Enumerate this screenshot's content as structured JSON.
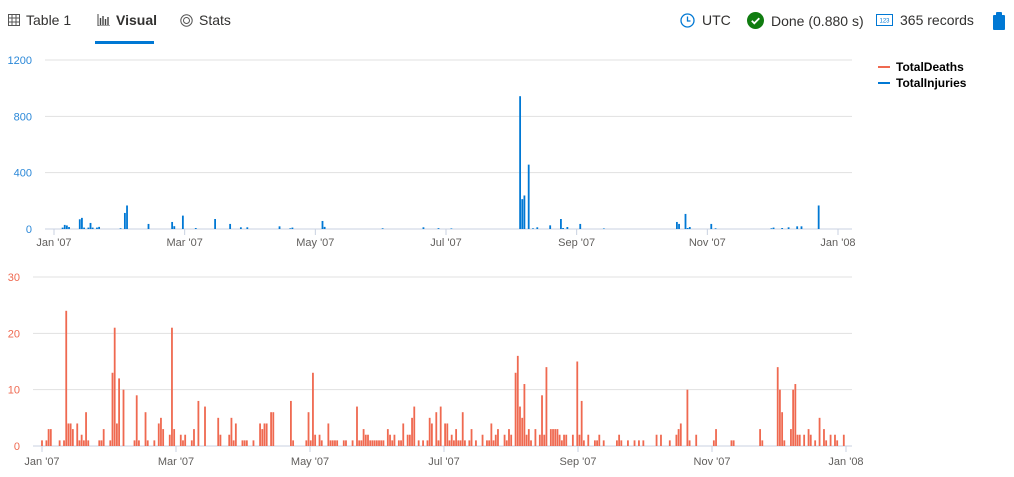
{
  "tabs": [
    {
      "label": "Table 1",
      "icon": "table-icon"
    },
    {
      "label": "Visual",
      "icon": "bar-chart-icon",
      "active": true
    },
    {
      "label": "Stats",
      "icon": "stats-icon"
    }
  ],
  "status": {
    "timezone": "UTC",
    "done": "Done (0.880 s)",
    "records": "365 records"
  },
  "colors": {
    "deaths": "#ef6950",
    "injuries": "#0078d4",
    "accent": "#0078d4",
    "success": "#107c10"
  },
  "chart_data": [
    {
      "type": "bar",
      "series": [
        {
          "name": "TotalInjuries",
          "color": "#0078d4"
        }
      ],
      "ylim": [
        0,
        1200
      ],
      "yticks": [
        "0",
        "400",
        "800",
        "1200"
      ],
      "xticks": [
        "Jan '07",
        "Mar '07",
        "May '07",
        "Jul '07",
        "Sep '07",
        "Nov '07",
        "Jan '08"
      ],
      "xrange": [
        "2007-01-01",
        "2008-01-01"
      ],
      "grid": true,
      "points": [
        [
          "2007-01-05",
          10
        ],
        [
          "2007-01-06",
          29
        ],
        [
          "2007-01-07",
          25
        ],
        [
          "2007-01-08",
          14
        ],
        [
          "2007-01-13",
          69
        ],
        [
          "2007-01-14",
          79
        ],
        [
          "2007-01-15",
          10
        ],
        [
          "2007-01-17",
          10
        ],
        [
          "2007-01-18",
          43
        ],
        [
          "2007-01-19",
          10
        ],
        [
          "2007-01-21",
          10
        ],
        [
          "2007-01-22",
          15
        ],
        [
          "2007-02-01",
          5
        ],
        [
          "2007-02-03",
          114
        ],
        [
          "2007-02-04",
          167
        ],
        [
          "2007-02-14",
          36
        ],
        [
          "2007-02-25",
          50
        ],
        [
          "2007-02-26",
          20
        ],
        [
          "2007-03-02",
          95
        ],
        [
          "2007-03-08",
          7
        ],
        [
          "2007-03-17",
          71
        ],
        [
          "2007-03-24",
          36
        ],
        [
          "2007-03-29",
          12
        ],
        [
          "2007-04-01",
          12
        ],
        [
          "2007-04-16",
          19
        ],
        [
          "2007-04-21",
          5
        ],
        [
          "2007-04-22",
          10
        ],
        [
          "2007-05-06",
          57
        ],
        [
          "2007-05-07",
          15
        ],
        [
          "2007-06-03",
          5
        ],
        [
          "2007-06-22",
          12
        ],
        [
          "2007-06-29",
          6
        ],
        [
          "2007-07-05",
          4
        ],
        [
          "2007-08-06",
          943
        ],
        [
          "2007-08-07",
          212
        ],
        [
          "2007-08-08",
          238
        ],
        [
          "2007-08-10",
          457
        ],
        [
          "2007-08-12",
          5
        ],
        [
          "2007-08-14",
          12
        ],
        [
          "2007-08-20",
          26
        ],
        [
          "2007-08-25",
          71
        ],
        [
          "2007-08-26",
          7
        ],
        [
          "2007-08-28",
          14
        ],
        [
          "2007-09-03",
          36
        ],
        [
          "2007-09-14",
          4
        ],
        [
          "2007-10-18",
          50
        ],
        [
          "2007-10-19",
          36
        ],
        [
          "2007-10-22",
          107
        ],
        [
          "2007-10-23",
          7
        ],
        [
          "2007-10-24",
          14
        ],
        [
          "2007-11-03",
          36
        ],
        [
          "2007-11-05",
          5
        ],
        [
          "2007-12-01",
          5
        ],
        [
          "2007-12-02",
          10
        ],
        [
          "2007-12-06",
          7
        ],
        [
          "2007-12-09",
          12
        ],
        [
          "2007-12-13",
          19
        ],
        [
          "2007-12-15",
          19
        ],
        [
          "2007-12-23",
          167
        ]
      ]
    },
    {
      "type": "bar",
      "series": [
        {
          "name": "TotalDeaths",
          "color": "#ef6950"
        }
      ],
      "ylim": [
        0,
        30
      ],
      "yticks": [
        "0",
        "10",
        "20",
        "30"
      ],
      "xticks": [
        "Jan '07",
        "Mar '07",
        "May '07",
        "Jul '07",
        "Sep '07",
        "Nov '07",
        "Jan '08"
      ],
      "xrange": [
        "2007-01-01",
        "2008-01-01"
      ],
      "grid": true,
      "points": [
        [
          "2007-01-01",
          1
        ],
        [
          "2007-01-03",
          1
        ],
        [
          "2007-01-04",
          3
        ],
        [
          "2007-01-05",
          3
        ],
        [
          "2007-01-09",
          1
        ],
        [
          "2007-01-11",
          1
        ],
        [
          "2007-01-12",
          24
        ],
        [
          "2007-01-13",
          4
        ],
        [
          "2007-01-14",
          4
        ],
        [
          "2007-01-15",
          3
        ],
        [
          "2007-01-17",
          4
        ],
        [
          "2007-01-18",
          1
        ],
        [
          "2007-01-19",
          2
        ],
        [
          "2007-01-20",
          1
        ],
        [
          "2007-01-21",
          6
        ],
        [
          "2007-01-22",
          1
        ],
        [
          "2007-01-27",
          1
        ],
        [
          "2007-01-28",
          1
        ],
        [
          "2007-01-29",
          3
        ],
        [
          "2007-02-01",
          1
        ],
        [
          "2007-02-02",
          13
        ],
        [
          "2007-02-03",
          21
        ],
        [
          "2007-02-04",
          4
        ],
        [
          "2007-02-05",
          12
        ],
        [
          "2007-02-07",
          10
        ],
        [
          "2007-02-12",
          1
        ],
        [
          "2007-02-13",
          9
        ],
        [
          "2007-02-14",
          1
        ],
        [
          "2007-02-17",
          6
        ],
        [
          "2007-02-18",
          1
        ],
        [
          "2007-02-21",
          1
        ],
        [
          "2007-02-23",
          4
        ],
        [
          "2007-02-24",
          5
        ],
        [
          "2007-02-25",
          3
        ],
        [
          "2007-02-28",
          2
        ],
        [
          "2007-03-01",
          21
        ],
        [
          "2007-03-02",
          3
        ],
        [
          "2007-03-05",
          2
        ],
        [
          "2007-03-06",
          1
        ],
        [
          "2007-03-07",
          2
        ],
        [
          "2007-03-10",
          1
        ],
        [
          "2007-03-11",
          3
        ],
        [
          "2007-03-13",
          8
        ],
        [
          "2007-03-16",
          7
        ],
        [
          "2007-03-22",
          5
        ],
        [
          "2007-03-23",
          2
        ],
        [
          "2007-03-27",
          2
        ],
        [
          "2007-03-28",
          5
        ],
        [
          "2007-03-29",
          1
        ],
        [
          "2007-03-30",
          4
        ],
        [
          "2007-04-02",
          1
        ],
        [
          "2007-04-03",
          1
        ],
        [
          "2007-04-04",
          1
        ],
        [
          "2007-04-07",
          1
        ],
        [
          "2007-04-10",
          4
        ],
        [
          "2007-04-11",
          3
        ],
        [
          "2007-04-12",
          4
        ],
        [
          "2007-04-13",
          4
        ],
        [
          "2007-04-15",
          6
        ],
        [
          "2007-04-16",
          6
        ],
        [
          "2007-04-24",
          8
        ],
        [
          "2007-04-25",
          1
        ],
        [
          "2007-05-01",
          1
        ],
        [
          "2007-05-02",
          6
        ],
        [
          "2007-05-03",
          1
        ],
        [
          "2007-05-04",
          13
        ],
        [
          "2007-05-05",
          2
        ],
        [
          "2007-05-07",
          2
        ],
        [
          "2007-05-08",
          1
        ],
        [
          "2007-05-11",
          4
        ],
        [
          "2007-05-12",
          1
        ],
        [
          "2007-05-13",
          1
        ],
        [
          "2007-05-14",
          1
        ],
        [
          "2007-05-15",
          1
        ],
        [
          "2007-05-18",
          1
        ],
        [
          "2007-05-19",
          1
        ],
        [
          "2007-05-22",
          1
        ],
        [
          "2007-05-24",
          7
        ],
        [
          "2007-05-25",
          1
        ],
        [
          "2007-05-26",
          1
        ],
        [
          "2007-05-27",
          3
        ],
        [
          "2007-05-28",
          2
        ],
        [
          "2007-05-29",
          2
        ],
        [
          "2007-05-30",
          1
        ],
        [
          "2007-05-31",
          1
        ],
        [
          "2007-06-01",
          1
        ],
        [
          "2007-06-02",
          1
        ],
        [
          "2007-06-03",
          1
        ],
        [
          "2007-06-04",
          1
        ],
        [
          "2007-06-05",
          1
        ],
        [
          "2007-06-07",
          3
        ],
        [
          "2007-06-08",
          2
        ],
        [
          "2007-06-09",
          1
        ],
        [
          "2007-06-10",
          2
        ],
        [
          "2007-06-12",
          1
        ],
        [
          "2007-06-13",
          1
        ],
        [
          "2007-06-14",
          4
        ],
        [
          "2007-06-16",
          2
        ],
        [
          "2007-06-17",
          2
        ],
        [
          "2007-06-18",
          5
        ],
        [
          "2007-06-19",
          7
        ],
        [
          "2007-06-21",
          1
        ],
        [
          "2007-06-23",
          1
        ],
        [
          "2007-06-25",
          1
        ],
        [
          "2007-06-26",
          5
        ],
        [
          "2007-06-27",
          4
        ],
        [
          "2007-06-29",
          6
        ],
        [
          "2007-06-30",
          1
        ],
        [
          "2007-07-01",
          7
        ],
        [
          "2007-07-03",
          4
        ],
        [
          "2007-07-04",
          4
        ],
        [
          "2007-07-05",
          1
        ],
        [
          "2007-07-06",
          2
        ],
        [
          "2007-07-07",
          1
        ],
        [
          "2007-07-08",
          3
        ],
        [
          "2007-07-09",
          1
        ],
        [
          "2007-07-10",
          1
        ],
        [
          "2007-07-11",
          6
        ],
        [
          "2007-07-12",
          1
        ],
        [
          "2007-07-14",
          1
        ],
        [
          "2007-07-15",
          3
        ],
        [
          "2007-07-17",
          1
        ],
        [
          "2007-07-20",
          2
        ],
        [
          "2007-07-22",
          1
        ],
        [
          "2007-07-23",
          1
        ],
        [
          "2007-07-24",
          4
        ],
        [
          "2007-07-25",
          1
        ],
        [
          "2007-07-26",
          2
        ],
        [
          "2007-07-27",
          3
        ],
        [
          "2007-07-30",
          2
        ],
        [
          "2007-07-31",
          1
        ],
        [
          "2007-08-01",
          3
        ],
        [
          "2007-08-02",
          2
        ],
        [
          "2007-08-04",
          13
        ],
        [
          "2007-08-05",
          16
        ],
        [
          "2007-08-06",
          7
        ],
        [
          "2007-08-07",
          5
        ],
        [
          "2007-08-08",
          11
        ],
        [
          "2007-08-09",
          2
        ],
        [
          "2007-08-10",
          3
        ],
        [
          "2007-08-11",
          1
        ],
        [
          "2007-08-13",
          3
        ],
        [
          "2007-08-15",
          2
        ],
        [
          "2007-08-16",
          9
        ],
        [
          "2007-08-17",
          2
        ],
        [
          "2007-08-18",
          14
        ],
        [
          "2007-08-20",
          3
        ],
        [
          "2007-08-21",
          3
        ],
        [
          "2007-08-22",
          3
        ],
        [
          "2007-08-23",
          3
        ],
        [
          "2007-08-24",
          2
        ],
        [
          "2007-08-25",
          1
        ],
        [
          "2007-08-26",
          2
        ],
        [
          "2007-08-27",
          2
        ],
        [
          "2007-08-30",
          2
        ],
        [
          "2007-09-01",
          15
        ],
        [
          "2007-09-02",
          2
        ],
        [
          "2007-09-03",
          8
        ],
        [
          "2007-09-04",
          1
        ],
        [
          "2007-09-06",
          2
        ],
        [
          "2007-09-09",
          1
        ],
        [
          "2007-09-10",
          1
        ],
        [
          "2007-09-11",
          2
        ],
        [
          "2007-09-13",
          1
        ],
        [
          "2007-09-19",
          1
        ],
        [
          "2007-09-20",
          2
        ],
        [
          "2007-09-21",
          1
        ],
        [
          "2007-09-24",
          1
        ],
        [
          "2007-09-27",
          1
        ],
        [
          "2007-09-29",
          1
        ],
        [
          "2007-10-01",
          1
        ],
        [
          "2007-10-07",
          2
        ],
        [
          "2007-10-09",
          2
        ],
        [
          "2007-10-13",
          1
        ],
        [
          "2007-10-16",
          2
        ],
        [
          "2007-10-17",
          3
        ],
        [
          "2007-10-18",
          4
        ],
        [
          "2007-10-21",
          10
        ],
        [
          "2007-10-22",
          1
        ],
        [
          "2007-10-25",
          2
        ],
        [
          "2007-11-02",
          1
        ],
        [
          "2007-11-03",
          3
        ],
        [
          "2007-11-10",
          1
        ],
        [
          "2007-11-11",
          1
        ],
        [
          "2007-11-23",
          3
        ],
        [
          "2007-11-24",
          1
        ],
        [
          "2007-12-01",
          14
        ],
        [
          "2007-12-02",
          10
        ],
        [
          "2007-12-03",
          6
        ],
        [
          "2007-12-04",
          1
        ],
        [
          "2007-12-07",
          3
        ],
        [
          "2007-12-08",
          10
        ],
        [
          "2007-12-09",
          11
        ],
        [
          "2007-12-10",
          2
        ],
        [
          "2007-12-11",
          2
        ],
        [
          "2007-12-13",
          2
        ],
        [
          "2007-12-15",
          3
        ],
        [
          "2007-12-16",
          2
        ],
        [
          "2007-12-18",
          1
        ],
        [
          "2007-12-20",
          5
        ],
        [
          "2007-12-22",
          3
        ],
        [
          "2007-12-23",
          1
        ],
        [
          "2007-12-25",
          2
        ],
        [
          "2007-12-27",
          2
        ],
        [
          "2007-12-28",
          1
        ],
        [
          "2007-12-31",
          2
        ]
      ]
    }
  ],
  "legend": [
    {
      "label": "TotalDeaths",
      "color": "#ef6950"
    },
    {
      "label": "TotalInjuries",
      "color": "#0078d4"
    }
  ]
}
